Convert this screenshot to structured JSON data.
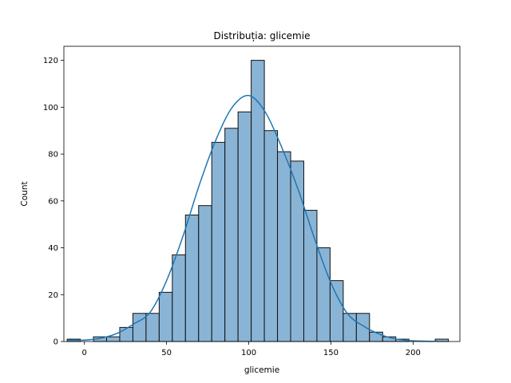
{
  "chart_data": {
    "type": "bar",
    "title": "Distribuția: glicemie",
    "xlabel": "glicemie",
    "ylabel": "Count",
    "xlim": [
      -12.5,
      228.5
    ],
    "ylim": [
      0,
      126
    ],
    "x_ticks": [
      0,
      50,
      100,
      150,
      200
    ],
    "y_ticks": [
      0,
      20,
      40,
      60,
      80,
      100,
      120
    ],
    "bin_edges": [
      -10.5,
      -2.5,
      5.5,
      13.5,
      21.5,
      29.5,
      37.5,
      45.5,
      53.5,
      61.5,
      69.5,
      77.5,
      85.5,
      93.5,
      101.5,
      109.5,
      117.5,
      125.5,
      133.5,
      141.5,
      149.5,
      157.5,
      165.5,
      173.5,
      181.5,
      189.5,
      197.5,
      205.5,
      213.5,
      221.5
    ],
    "counts": [
      1,
      0,
      2,
      2,
      6,
      12,
      12,
      21,
      37,
      54,
      58,
      85,
      91,
      98,
      120,
      90,
      81,
      77,
      56,
      40,
      26,
      12,
      12,
      4,
      2,
      1,
      0,
      0,
      1
    ],
    "kde": {
      "x": [
        -10,
        0,
        10,
        20,
        30,
        40,
        50,
        60,
        70,
        80,
        90,
        100,
        110,
        120,
        130,
        140,
        150,
        160,
        170,
        180,
        190,
        200,
        210,
        215
      ],
      "y": [
        0.6,
        0.6,
        1.4,
        3.5,
        7.5,
        12.5,
        26,
        45,
        67,
        86,
        100,
        105,
        98,
        83,
        65,
        44,
        25,
        12,
        6.5,
        3,
        1,
        0.3,
        0.1,
        0.1
      ]
    },
    "colors": {
      "bar_fill": "#8ab4d5",
      "bar_edge": "#111111",
      "kde_line": "#1f77b4"
    },
    "grid": false,
    "legend": "none"
  }
}
